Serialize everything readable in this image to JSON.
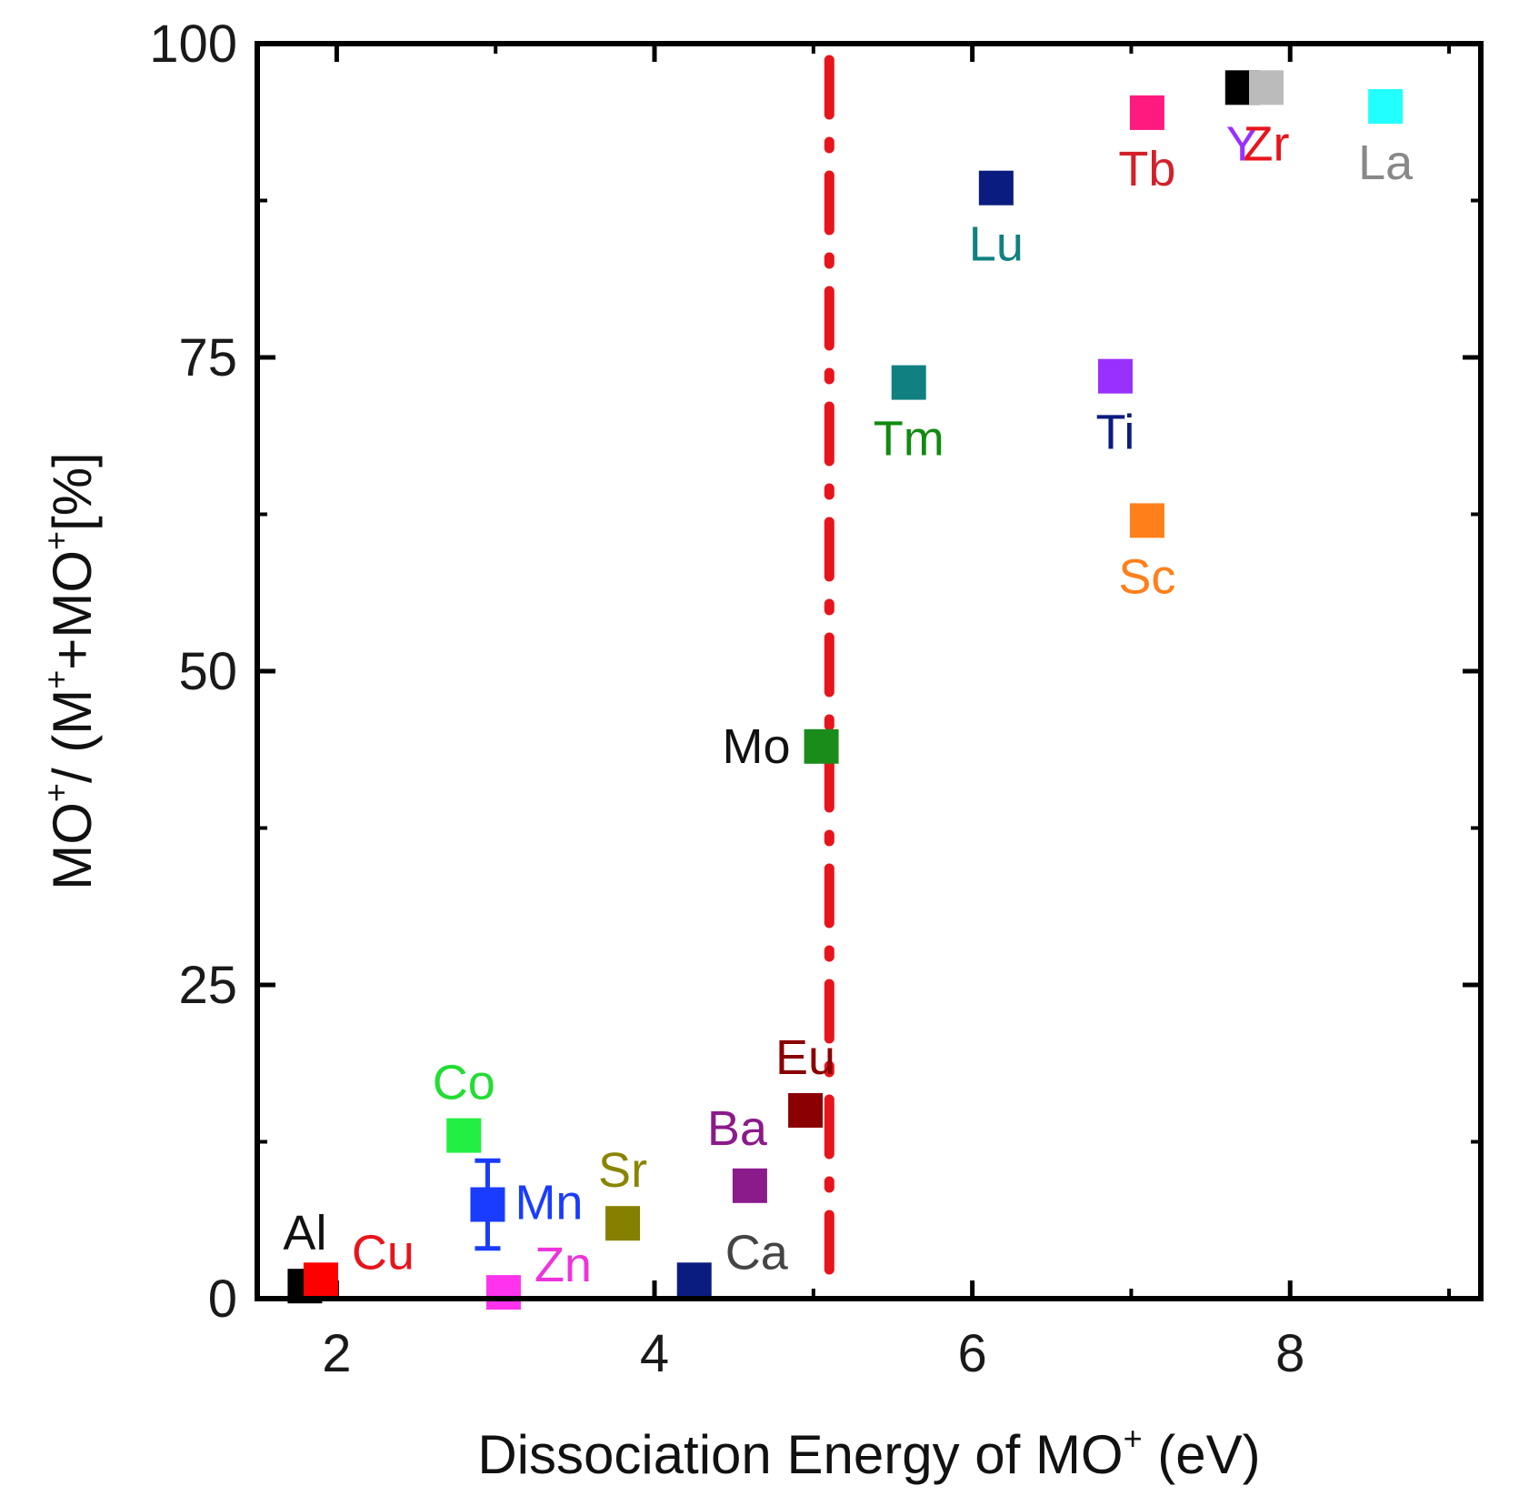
{
  "chart_data": {
    "type": "scatter",
    "title": "",
    "xlabel": {
      "prefix": "Dissociation Energy of MO",
      "sup": "+",
      "suffix": " (eV)"
    },
    "ylabel": {
      "p1": "MO",
      "s1": "+",
      "p2": "/ (M",
      "s2": "+",
      "p3": "+MO",
      "s3": "+",
      "p4": "[%]"
    },
    "xlim": [
      1.5,
      9.2
    ],
    "ylim": [
      0,
      100
    ],
    "xticks": [
      2,
      4,
      6,
      8
    ],
    "yticks": [
      0,
      25,
      50,
      75,
      100
    ],
    "threshold_line": {
      "x": 5.1,
      "style": "dash-dot",
      "color": "#e8141c"
    },
    "points": [
      {
        "label": "Al",
        "x": 1.8,
        "y": 1.0,
        "color": "#000000",
        "label_color": "#111111",
        "label_pos": "above"
      },
      {
        "label": "Cu",
        "x": 1.9,
        "y": 1.5,
        "color": "#ff0000",
        "label_color": "#e8141c",
        "label_pos": "right-up"
      },
      {
        "label": "Co",
        "x": 2.8,
        "y": 13.0,
        "color": "#22ee44",
        "label_color": "#22dd33",
        "label_pos": "above"
      },
      {
        "label": "Mn",
        "x": 2.95,
        "y": 7.5,
        "color": "#1a3cff",
        "label_color": "#1a3cff",
        "label_pos": "right",
        "err": 3.5
      },
      {
        "label": "Zn",
        "x": 3.05,
        "y": 0.5,
        "color": "#ff33ee",
        "label_color": "#ee33dd",
        "label_pos": "right-up"
      },
      {
        "label": "Sr",
        "x": 3.8,
        "y": 6.0,
        "color": "#858000",
        "label_color": "#8a8500",
        "label_pos": "above"
      },
      {
        "label": "Ca",
        "x": 4.25,
        "y": 1.5,
        "color": "#0a1c80",
        "label_color": "#444444",
        "label_pos": "right-up"
      },
      {
        "label": "Ba",
        "x": 4.6,
        "y": 9.0,
        "color": "#8b1a8b",
        "label_color": "#8b1a8b",
        "label_pos": "above-left"
      },
      {
        "label": "Eu",
        "x": 4.95,
        "y": 15.0,
        "color": "#8b0000",
        "label_color": "#8b0000",
        "label_pos": "above"
      },
      {
        "label": "Mo",
        "x": 5.05,
        "y": 44.0,
        "color": "#1a8c1a",
        "label_color": "#111111",
        "label_pos": "left"
      },
      {
        "label": "Tm",
        "x": 5.6,
        "y": 73.0,
        "color": "#118080",
        "label_color": "#118a11",
        "label_pos": "below"
      },
      {
        "label": "Lu",
        "x": 6.15,
        "y": 88.5,
        "color": "#0a1c80",
        "label_color": "#108080",
        "label_pos": "below"
      },
      {
        "label": "Ti",
        "x": 6.9,
        "y": 73.5,
        "color": "#9a30ff",
        "label_color": "#0a1c80",
        "label_pos": "below"
      },
      {
        "label": "Sc",
        "x": 7.1,
        "y": 62.0,
        "color": "#ff7f1a",
        "label_color": "#ff7f1a",
        "label_pos": "below"
      },
      {
        "label": "Tb",
        "x": 7.1,
        "y": 94.5,
        "color": "#ff1a80",
        "label_color": "#d4202a",
        "label_pos": "below"
      },
      {
        "label": "Y",
        "x": 7.7,
        "y": 96.5,
        "color": "#000000",
        "label_color": "#9a30ff",
        "label_pos": "below"
      },
      {
        "label": "Zr",
        "x": 7.85,
        "y": 96.5,
        "color": "#bbbbbb",
        "label_color": "#e8141c",
        "label_pos": "below"
      },
      {
        "label": "La",
        "x": 8.6,
        "y": 95.0,
        "color": "#22ffff",
        "label_color": "#888888",
        "label_pos": "below"
      }
    ]
  }
}
